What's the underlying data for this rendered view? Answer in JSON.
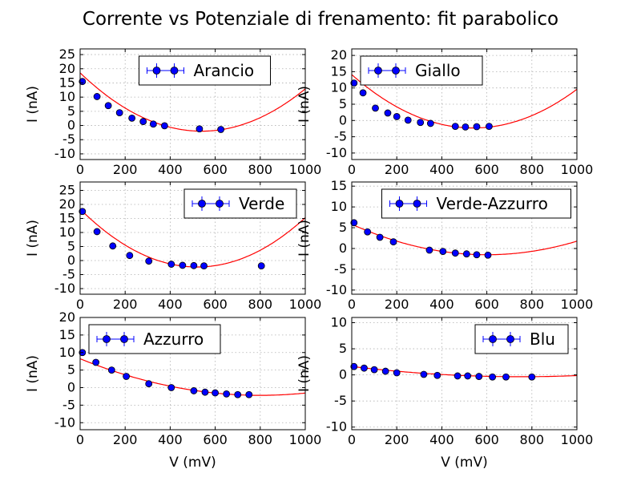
{
  "title": "Corrente vs Potenziale di frenamento: fit parabolico",
  "chart_data": [
    {
      "type": "scatter",
      "legend": "Arancio",
      "legend_position": "top-center",
      "xlabel": "",
      "ylabel": "I (nA)",
      "xlim": [
        0,
        1000
      ],
      "ylim": [
        -12,
        27
      ],
      "xticks": [
        0,
        200,
        400,
        600,
        800,
        1000
      ],
      "yticks": [
        -10,
        -5,
        0,
        5,
        10,
        15,
        20,
        25
      ],
      "grid": true,
      "points": [
        {
          "x": 10,
          "y": 15.5
        },
        {
          "x": 75,
          "y": 10.2
        },
        {
          "x": 125,
          "y": 7.0
        },
        {
          "x": 175,
          "y": 4.5
        },
        {
          "x": 230,
          "y": 2.6
        },
        {
          "x": 280,
          "y": 1.4
        },
        {
          "x": 325,
          "y": 0.5
        },
        {
          "x": 375,
          "y": -0.1
        },
        {
          "x": 530,
          "y": -1.2
        },
        {
          "x": 625,
          "y": -1.4
        }
      ],
      "fit": {
        "a": 7.05e-05,
        "vertex_x": 540,
        "vertex_y": -2.0
      }
    },
    {
      "type": "scatter",
      "legend": "Giallo",
      "legend_position": "top-left",
      "xlabel": "",
      "ylabel": "I (nA)",
      "xlim": [
        0,
        1000
      ],
      "ylim": [
        -12,
        22
      ],
      "xticks": [
        0,
        200,
        400,
        600,
        800,
        1000
      ],
      "yticks": [
        -10,
        -5,
        0,
        5,
        10,
        15,
        20
      ],
      "grid": true,
      "points": [
        {
          "x": 10,
          "y": 11.5
        },
        {
          "x": 50,
          "y": 8.5
        },
        {
          "x": 105,
          "y": 3.8
        },
        {
          "x": 160,
          "y": 2.3
        },
        {
          "x": 200,
          "y": 1.2
        },
        {
          "x": 250,
          "y": 0.1
        },
        {
          "x": 305,
          "y": -0.6
        },
        {
          "x": 350,
          "y": -0.9
        },
        {
          "x": 460,
          "y": -1.8
        },
        {
          "x": 505,
          "y": -2.0
        },
        {
          "x": 555,
          "y": -1.9
        },
        {
          "x": 610,
          "y": -1.8
        }
      ],
      "fit": {
        "a": 5.62e-05,
        "vertex_x": 540,
        "vertex_y": -2.3
      }
    },
    {
      "type": "scatter",
      "legend": "Verde",
      "legend_position": "top-right",
      "xlabel": "",
      "ylabel": "I (nA)",
      "xlim": [
        0,
        1000
      ],
      "ylim": [
        -12,
        28
      ],
      "xticks": [
        0,
        200,
        400,
        600,
        800,
        1000
      ],
      "yticks": [
        -10,
        -5,
        0,
        5,
        10,
        15,
        20,
        25
      ],
      "grid": true,
      "points": [
        {
          "x": 10,
          "y": 17.5
        },
        {
          "x": 75,
          "y": 10.3
        },
        {
          "x": 145,
          "y": 5.2
        },
        {
          "x": 220,
          "y": 1.8
        },
        {
          "x": 305,
          "y": -0.2
        },
        {
          "x": 405,
          "y": -1.3
        },
        {
          "x": 455,
          "y": -1.7
        },
        {
          "x": 505,
          "y": -1.8
        },
        {
          "x": 550,
          "y": -1.9
        },
        {
          "x": 805,
          "y": -1.9
        }
      ],
      "fit": {
        "a": 7.63e-05,
        "vertex_x": 520,
        "vertex_y": -2.3
      }
    },
    {
      "type": "scatter",
      "legend": "Verde-Azzurro",
      "legend_position": "top-center",
      "xlabel": "",
      "ylabel": "I (nA)",
      "xlim": [
        0,
        1000
      ],
      "ylim": [
        -11,
        16
      ],
      "xticks": [
        0,
        200,
        400,
        600,
        800,
        1000
      ],
      "yticks": [
        -10,
        -5,
        0,
        5,
        10,
        15
      ],
      "grid": true,
      "points": [
        {
          "x": 10,
          "y": 6.2
        },
        {
          "x": 70,
          "y": 4.0
        },
        {
          "x": 125,
          "y": 2.7
        },
        {
          "x": 185,
          "y": 1.6
        },
        {
          "x": 345,
          "y": -0.4
        },
        {
          "x": 405,
          "y": -0.7
        },
        {
          "x": 460,
          "y": -1.1
        },
        {
          "x": 510,
          "y": -1.3
        },
        {
          "x": 555,
          "y": -1.5
        },
        {
          "x": 605,
          "y": -1.6
        }
      ],
      "fit": {
        "a": 2.04e-05,
        "vertex_x": 600,
        "vertex_y": -1.5
      }
    },
    {
      "type": "scatter",
      "legend": "Azzurro",
      "legend_position": "top-left",
      "xlabel": "V (mV)",
      "ylabel": "I (nA)",
      "xlim": [
        0,
        1000
      ],
      "ylim": [
        -12,
        20
      ],
      "xticks": [
        0,
        200,
        400,
        600,
        800,
        1000
      ],
      "yticks": [
        -10,
        -5,
        0,
        5,
        10,
        15,
        20
      ],
      "grid": true,
      "points": [
        {
          "x": 10,
          "y": 10.0
        },
        {
          "x": 70,
          "y": 7.2
        },
        {
          "x": 140,
          "y": 5.0
        },
        {
          "x": 205,
          "y": 3.2
        },
        {
          "x": 305,
          "y": 1.1
        },
        {
          "x": 405,
          "y": 0.0
        },
        {
          "x": 505,
          "y": -0.9
        },
        {
          "x": 555,
          "y": -1.3
        },
        {
          "x": 600,
          "y": -1.5
        },
        {
          "x": 650,
          "y": -1.8
        },
        {
          "x": 700,
          "y": -2.0
        },
        {
          "x": 750,
          "y": -2.0
        }
      ],
      "fit": {
        "a": 1.63e-05,
        "vertex_x": 800,
        "vertex_y": -2.2
      }
    },
    {
      "type": "scatter",
      "legend": "Blu",
      "legend_position": "top-right",
      "xlabel": "V (mV)",
      "ylabel": "I (nA)",
      "xlim": [
        0,
        1000
      ],
      "ylim": [
        -10.5,
        11
      ],
      "xticks": [
        0,
        200,
        400,
        600,
        800,
        1000
      ],
      "yticks": [
        -10,
        -5,
        0,
        5,
        10
      ],
      "grid": true,
      "points": [
        {
          "x": 10,
          "y": 1.6
        },
        {
          "x": 55,
          "y": 1.3
        },
        {
          "x": 100,
          "y": 1.0
        },
        {
          "x": 150,
          "y": 0.7
        },
        {
          "x": 200,
          "y": 0.4
        },
        {
          "x": 320,
          "y": 0.1
        },
        {
          "x": 380,
          "y": -0.1
        },
        {
          "x": 470,
          "y": -0.2
        },
        {
          "x": 515,
          "y": -0.2
        },
        {
          "x": 565,
          "y": -0.3
        },
        {
          "x": 625,
          "y": -0.4
        },
        {
          "x": 685,
          "y": -0.4
        },
        {
          "x": 800,
          "y": -0.4
        }
      ],
      "fit": {
        "a": 3.5e-06,
        "vertex_x": 750,
        "vertex_y": -0.35
      }
    }
  ]
}
